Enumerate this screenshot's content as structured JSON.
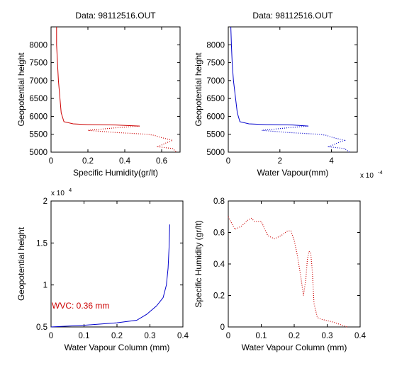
{
  "chart_data": [
    {
      "type": "line",
      "title": "Data: 98112516.OUT",
      "xlabel": "Specific Humidity(gr/lt)",
      "ylabel": "Geopotential height",
      "xlim": [
        0,
        0.7
      ],
      "ylim": [
        5000,
        8500
      ],
      "xticks": [
        0,
        0.2,
        0.4,
        0.6
      ],
      "xtick_labels": [
        "0",
        "0.2",
        "0.4",
        "0.6"
      ],
      "yticks": [
        5000,
        5500,
        6000,
        6500,
        7000,
        7500,
        8000
      ],
      "ytick_labels": [
        "5000",
        "5500",
        "6000",
        "6500",
        "7000",
        "7500",
        "8000"
      ],
      "grid": false,
      "color": "#cc0000",
      "series": [
        {
          "line_style": "solid",
          "x": [
            0.03,
            0.03,
            0.035,
            0.04,
            0.045,
            0.05,
            0.055,
            0.07,
            0.12,
            0.2,
            0.35,
            0.48
          ],
          "y": [
            8500,
            8000,
            7500,
            7000,
            6700,
            6400,
            6100,
            5850,
            5790,
            5770,
            5760,
            5730
          ]
        },
        {
          "line_style": "dotted",
          "x": [
            0.48,
            0.35,
            0.2,
            0.35,
            0.52,
            0.56,
            0.59,
            0.66,
            0.62,
            0.58,
            0.66,
            0.68
          ],
          "y": [
            5730,
            5680,
            5610,
            5550,
            5500,
            5470,
            5420,
            5330,
            5250,
            5150,
            5100,
            5000
          ]
        }
      ]
    },
    {
      "type": "line",
      "title": "Data: 98112516.OUT",
      "xlabel": "Water Vapour(mm)",
      "ylabel": "Geopotential height",
      "x_multiplier": "x 10",
      "x_multiplier_exp": "-4",
      "xlim": [
        0,
        5
      ],
      "ylim": [
        5000,
        8500
      ],
      "xticks": [
        0,
        2,
        4
      ],
      "xtick_labels": [
        "0",
        "2",
        "4"
      ],
      "yticks": [
        5000,
        5500,
        6000,
        6500,
        7000,
        7500,
        8000
      ],
      "ytick_labels": [
        "5000",
        "5500",
        "6000",
        "6500",
        "7000",
        "7500",
        "8000"
      ],
      "grid": false,
      "color": "#0000cc",
      "series": [
        {
          "line_style": "solid",
          "x": [
            0.1,
            0.12,
            0.15,
            0.2,
            0.25,
            0.3,
            0.35,
            0.45,
            0.8,
            1.5,
            2.5,
            3.1
          ],
          "y": [
            8500,
            8000,
            7500,
            7000,
            6700,
            6400,
            6100,
            5850,
            5790,
            5770,
            5760,
            5730
          ]
        },
        {
          "line_style": "dotted",
          "x": [
            3.1,
            2.3,
            1.3,
            2.3,
            3.5,
            3.8,
            4.0,
            4.5,
            4.2,
            3.9,
            4.5,
            4.7
          ],
          "y": [
            5730,
            5680,
            5610,
            5550,
            5500,
            5470,
            5420,
            5330,
            5250,
            5150,
            5100,
            5000
          ]
        }
      ]
    },
    {
      "type": "line",
      "title": "",
      "xlabel": "Water Vapour Column (mm)",
      "ylabel": "Geopotential height",
      "y_multiplier": "x 10",
      "y_multiplier_exp": "4",
      "annotation": "WVC: 0.36 mm",
      "annotation_color": "#cc0000",
      "xlim": [
        0,
        0.4
      ],
      "ylim": [
        0.5,
        2
      ],
      "xticks": [
        0,
        0.1,
        0.2,
        0.3,
        0.4
      ],
      "xtick_labels": [
        "0",
        "0.1",
        "0.2",
        "0.3",
        "0.4"
      ],
      "yticks": [
        0.5,
        1,
        1.5,
        2
      ],
      "ytick_labels": [
        "0.5",
        "1",
        "1.5",
        "2"
      ],
      "grid": false,
      "color": "#0000cc",
      "series": [
        {
          "line_style": "solid",
          "x": [
            0.0,
            0.1,
            0.2,
            0.26,
            0.29,
            0.32,
            0.34,
            0.35,
            0.355,
            0.358,
            0.36
          ],
          "y": [
            0.5,
            0.52,
            0.55,
            0.58,
            0.65,
            0.75,
            0.85,
            1.0,
            1.2,
            1.45,
            1.72
          ]
        }
      ]
    },
    {
      "type": "line",
      "title": "",
      "xlabel": "Water Vapour Column (mm)",
      "ylabel": "Specific Humidity (gr/lt)",
      "xlim": [
        0,
        0.4
      ],
      "ylim": [
        0,
        0.8
      ],
      "xticks": [
        0,
        0.1,
        0.2,
        0.3,
        0.4
      ],
      "xtick_labels": [
        "0",
        "0.1",
        "0.2",
        "0.3",
        "0.4"
      ],
      "yticks": [
        0,
        0.2,
        0.4,
        0.6,
        0.8
      ],
      "ytick_labels": [
        "0",
        "0.2",
        "0.4",
        "0.6",
        "0.8"
      ],
      "grid": false,
      "color": "#cc0000",
      "series": [
        {
          "line_style": "dotted",
          "x": [
            0.0,
            0.02,
            0.04,
            0.06,
            0.07,
            0.08,
            0.1,
            0.12,
            0.14,
            0.16,
            0.18,
            0.19,
            0.2,
            0.21,
            0.22,
            0.228,
            0.235,
            0.24,
            0.245,
            0.25,
            0.255,
            0.26,
            0.27,
            0.28,
            0.3,
            0.32,
            0.34,
            0.36
          ],
          "y": [
            0.7,
            0.62,
            0.64,
            0.68,
            0.69,
            0.67,
            0.67,
            0.58,
            0.56,
            0.58,
            0.61,
            0.61,
            0.55,
            0.45,
            0.32,
            0.2,
            0.3,
            0.43,
            0.48,
            0.47,
            0.35,
            0.15,
            0.06,
            0.05,
            0.04,
            0.03,
            0.015,
            0.0
          ]
        }
      ]
    }
  ]
}
